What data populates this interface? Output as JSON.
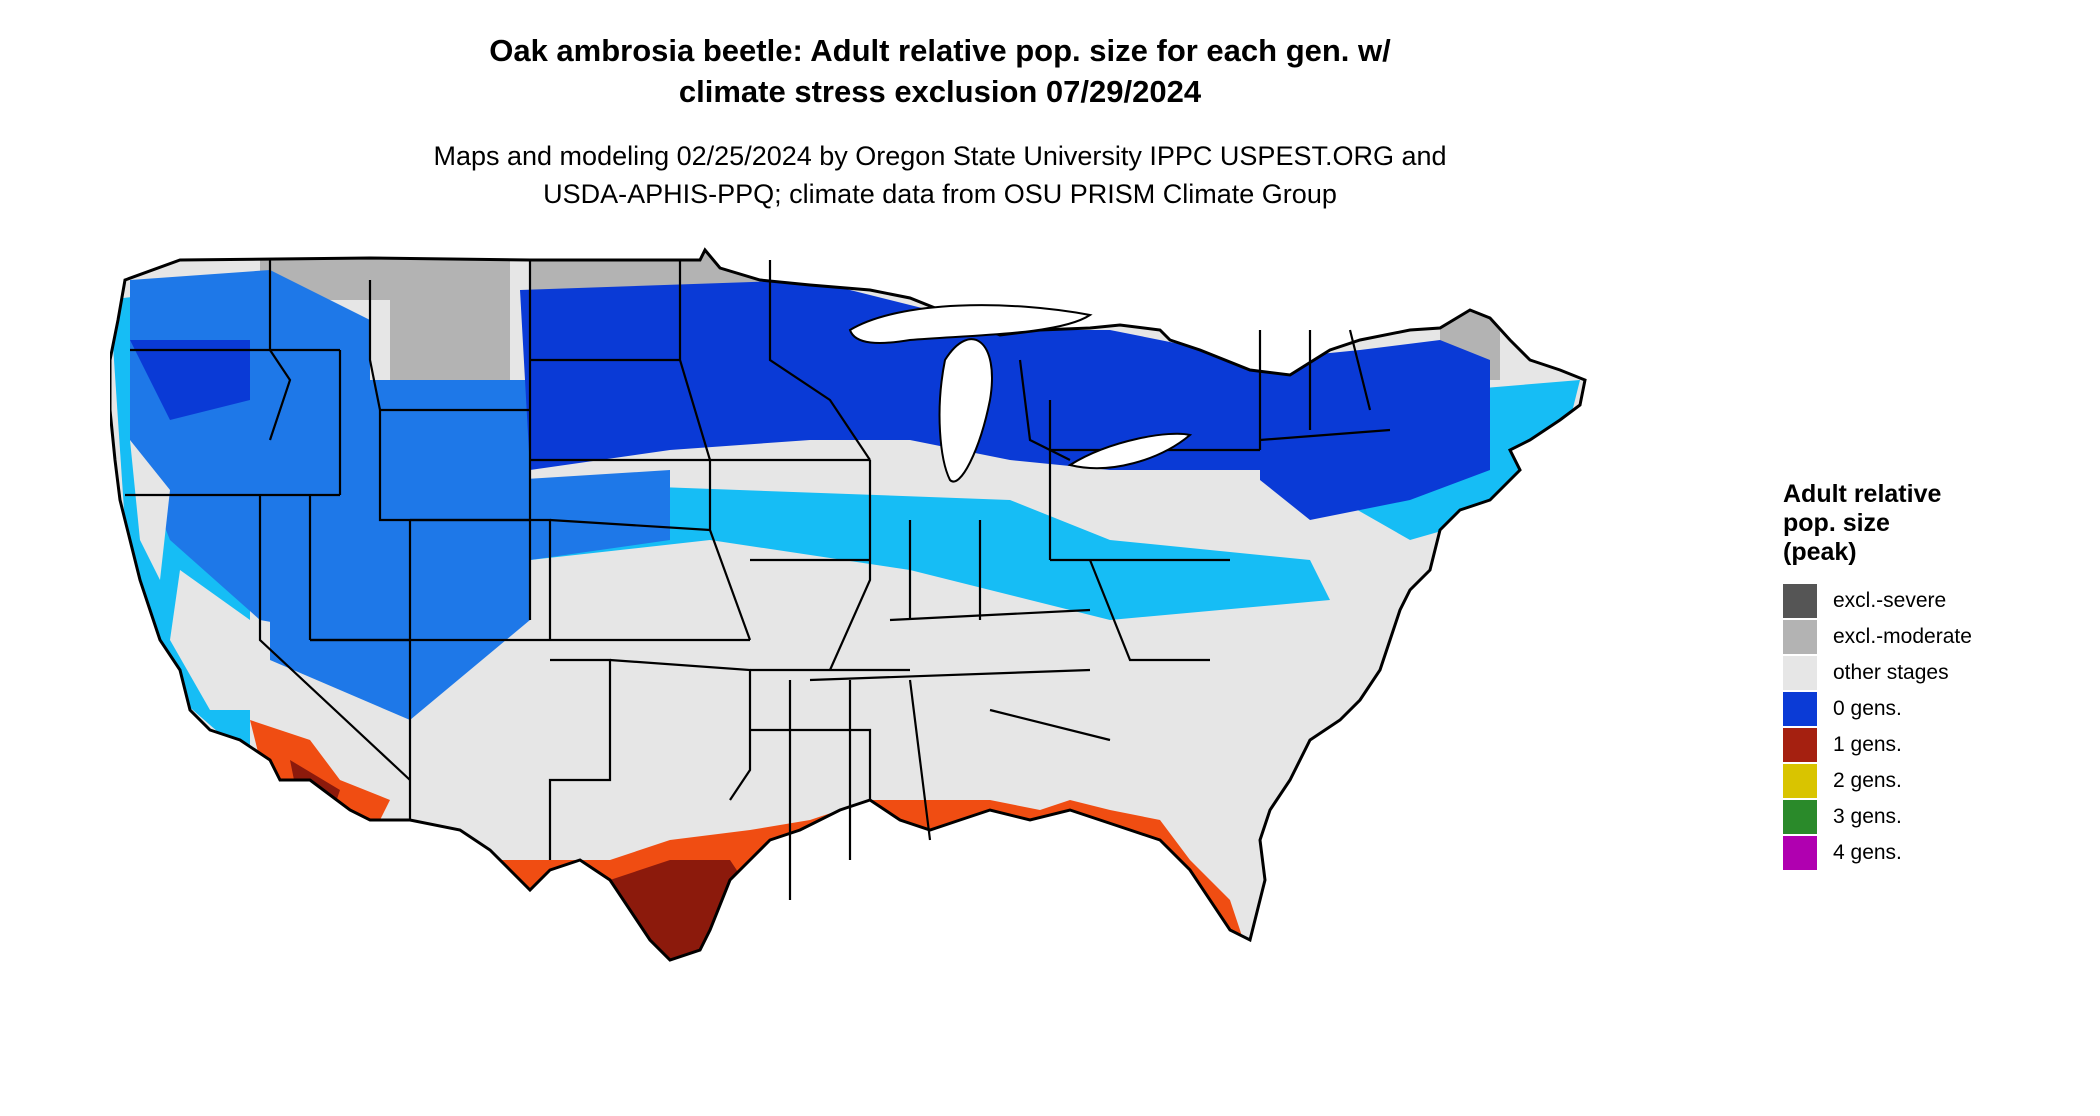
{
  "title": {
    "line1": "Oak ambrosia beetle: Adult relative pop. size for each gen. w/",
    "line2": "climate stress exclusion 07/29/2024"
  },
  "subtitle": {
    "line1": "Maps and modeling 02/25/2024 by Oregon State University IPPC USPEST.ORG and",
    "line2": "USDA-APHIS-PPQ; climate data from OSU PRISM Climate Group"
  },
  "legend": {
    "title_lines": [
      "Adult relative",
      "pop. size",
      "(peak)"
    ],
    "items": [
      {
        "label": "excl.-severe",
        "color": "#555555"
      },
      {
        "label": "excl.-moderate",
        "color": "#b3b3b3"
      },
      {
        "label": "other stages",
        "color": "#e6e6e6"
      },
      {
        "label": "0 gens.",
        "color": "#0b3bd6"
      },
      {
        "label": "1 gens.",
        "color": "#a52010"
      },
      {
        "label": "2 gens.",
        "color": "#d9c400"
      },
      {
        "label": "3 gens.",
        "color": "#2a8a2a"
      },
      {
        "label": "4 gens.",
        "color": "#b000b0"
      }
    ]
  },
  "map_colors": {
    "background": "#e6e6e6",
    "excl_moderate": "#b3b3b3",
    "zero_gens_dark": "#0a3ad6",
    "zero_gens_mid": "#1e78e8",
    "zero_gens_light": "#16bdf5",
    "one_gen_light": "#f04d12",
    "one_gen_dark": "#8c1a0c",
    "border": "#000000"
  }
}
